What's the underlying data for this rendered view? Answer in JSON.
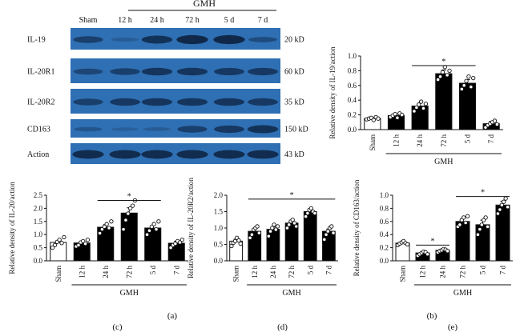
{
  "panel_a": {
    "group_label": "GMH",
    "lane_labels": [
      "Sham",
      "12 h",
      "24 h",
      "72 h",
      "5 d",
      "7 d"
    ],
    "blots": [
      {
        "label": "IL-19",
        "size": "20 kD",
        "intensity": [
          0.55,
          0.1,
          0.75,
          0.9,
          0.9,
          0.35
        ]
      },
      {
        "label": "IL-20R1",
        "size": "60 kD",
        "intensity": [
          0.45,
          0.55,
          0.7,
          0.7,
          0.65,
          0.65
        ]
      },
      {
        "label": "IL-20R2",
        "size": "35 kD",
        "intensity": [
          0.55,
          0.65,
          0.7,
          0.7,
          0.7,
          0.65
        ]
      },
      {
        "label": "CD163",
        "size": "150 kD",
        "intensity": [
          0.2,
          0.05,
          0.1,
          0.55,
          0.65,
          0.75
        ]
      },
      {
        "label": "Action",
        "size": "43 kD",
        "intensity": [
          0.85,
          0.85,
          0.85,
          0.85,
          0.85,
          0.85
        ]
      }
    ],
    "blot_bg": "#2f6fb3",
    "band_color": "#0b1e3a",
    "caption": "(a)"
  },
  "chart_data": [
    {
      "id": "b",
      "type": "bar",
      "caption": "(b)",
      "categories": [
        "Sham",
        "12 h",
        "24 h",
        "72 h",
        "5 d",
        "7 d"
      ],
      "values": [
        0.15,
        0.19,
        0.32,
        0.76,
        0.63,
        0.08
      ],
      "errors": [
        0.01,
        0.02,
        0.04,
        0.05,
        0.05,
        0.03
      ],
      "points": [
        [
          0.14,
          0.15,
          0.16,
          0.13,
          0.17,
          0.15
        ],
        [
          0.17,
          0.19,
          0.21,
          0.16,
          0.22,
          0.2
        ],
        [
          0.25,
          0.3,
          0.34,
          0.38,
          0.29,
          0.35
        ],
        [
          0.68,
          0.72,
          0.78,
          0.85,
          0.74,
          0.8
        ],
        [
          0.55,
          0.6,
          0.66,
          0.72,
          0.58,
          0.7
        ],
        [
          0.03,
          0.06,
          0.08,
          0.1,
          0.12,
          0.07
        ]
      ],
      "ylabel": "Relative density of IL-19/action",
      "ylim": [
        0,
        1.0
      ],
      "yticks": [
        "0.0",
        "0.2",
        "0.4",
        "0.6",
        "0.8",
        "1.0"
      ],
      "xgroup": "GMH",
      "significance": {
        "from": 2,
        "to": 4,
        "y": 0.87,
        "label": "*"
      }
    },
    {
      "id": "c",
      "type": "bar",
      "caption": "(c)",
      "categories": [
        "Sham",
        "12 h",
        "24 h",
        "72 h",
        "5 d",
        "7 d"
      ],
      "values": [
        0.7,
        0.68,
        1.28,
        1.82,
        1.25,
        0.67
      ],
      "errors": [
        0.08,
        0.07,
        0.1,
        0.2,
        0.1,
        0.08
      ],
      "points": [
        [
          0.5,
          0.6,
          0.72,
          0.8,
          0.68,
          0.9
        ],
        [
          0.55,
          0.6,
          0.7,
          0.75,
          0.65,
          0.8
        ],
        [
          1.05,
          1.2,
          1.3,
          1.4,
          1.25,
          1.5
        ],
        [
          1.2,
          1.55,
          1.8,
          2.0,
          2.1,
          2.3
        ],
        [
          1.0,
          1.15,
          1.3,
          1.4,
          1.2,
          1.5
        ],
        [
          0.5,
          0.6,
          0.65,
          0.75,
          0.7,
          0.8
        ]
      ],
      "ylabel": "Relative density of IL-20/action",
      "ylim": [
        0,
        2.5
      ],
      "yticks": [
        "0.0",
        "0.5",
        "1.0",
        "1.5",
        "2.0",
        "2.5"
      ],
      "xgroup": "GMH",
      "significance": {
        "from": 2,
        "to": 4,
        "y": 2.3,
        "label": "*"
      }
    },
    {
      "id": "d",
      "type": "bar",
      "caption": "(d)",
      "categories": [
        "Sham",
        "12 h",
        "24 h",
        "72 h",
        "5 d",
        "7 d"
      ],
      "values": [
        0.6,
        0.9,
        0.96,
        1.15,
        1.5,
        0.9
      ],
      "errors": [
        0.06,
        0.07,
        0.07,
        0.06,
        0.05,
        0.07
      ],
      "points": [
        [
          0.45,
          0.55,
          0.6,
          0.7,
          0.62,
          0.52
        ],
        [
          0.7,
          0.8,
          0.95,
          1.0,
          1.05,
          0.85
        ],
        [
          0.75,
          0.9,
          1.0,
          1.1,
          0.95,
          1.05
        ],
        [
          1.0,
          1.1,
          1.2,
          1.25,
          1.15,
          1.05
        ],
        [
          1.35,
          1.45,
          1.55,
          1.6,
          1.5,
          1.45
        ],
        [
          0.65,
          0.8,
          0.9,
          1.0,
          1.05,
          0.85
        ]
      ],
      "ylabel": "Relative density of IL-20R2/action",
      "ylim": [
        0,
        2.0
      ],
      "yticks": [
        "0.0",
        "0.5",
        "1.0",
        "1.5",
        "2.0"
      ],
      "xgroup": "GMH",
      "significance": {
        "from": 1,
        "to": 5,
        "y": 1.88,
        "label": "*"
      }
    },
    {
      "id": "e",
      "type": "bar",
      "caption": "(e)",
      "categories": [
        "Sham",
        "12 h",
        "24 h",
        "72 h",
        "5 d",
        "7 d"
      ],
      "values": [
        0.27,
        0.12,
        0.16,
        0.6,
        0.55,
        0.85
      ],
      "errors": [
        0.02,
        0.02,
        0.02,
        0.04,
        0.07,
        0.06
      ],
      "points": [
        [
          0.24,
          0.26,
          0.28,
          0.3,
          0.27,
          0.25
        ],
        [
          0.08,
          0.1,
          0.12,
          0.14,
          0.13,
          0.1
        ],
        [
          0.13,
          0.15,
          0.16,
          0.18,
          0.17,
          0.15
        ],
        [
          0.52,
          0.55,
          0.62,
          0.66,
          0.58,
          0.68
        ],
        [
          0.4,
          0.48,
          0.55,
          0.62,
          0.66,
          0.52
        ],
        [
          0.72,
          0.78,
          0.85,
          0.9,
          0.95,
          0.82
        ]
      ],
      "ylabel": "Relative density of CD163/action",
      "ylim": [
        0,
        1.0
      ],
      "yticks": [
        "0.0",
        "0.2",
        "0.4",
        "0.6",
        "0.8",
        "1.0"
      ],
      "xgroup": "GMH",
      "significance": [
        {
          "from": 1,
          "to": 2,
          "y": 0.24,
          "label": "*"
        },
        {
          "from": 3,
          "to": 5,
          "y": 0.98,
          "label": "*"
        }
      ]
    }
  ]
}
